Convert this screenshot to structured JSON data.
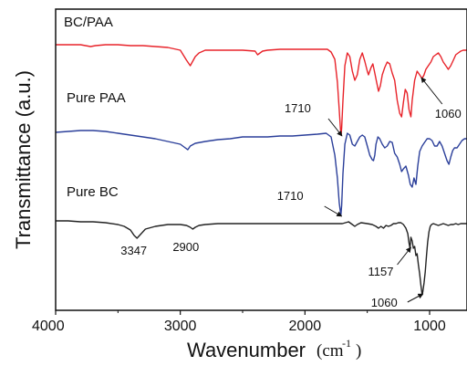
{
  "chart_data": {
    "type": "line",
    "title": "",
    "xlabel": "Wavenumber",
    "xunit": "(cm",
    "xunit_sup": "-1",
    "xunit_close": ")",
    "ylabel": "Transmittance (a.u.)",
    "xlim": [
      4000,
      700
    ],
    "x_reversed": true,
    "y_ticks_shown": false,
    "x_ticks": [
      4000,
      3000,
      2000,
      1000
    ],
    "x_tick_labels": [
      "4000",
      "3000",
      "2000",
      "1000"
    ],
    "grid": false,
    "legend": "none",
    "series": [
      {
        "name": "BC/PAA",
        "color": "#e8232a",
        "points": [
          [
            4000,
            39
          ],
          [
            3800,
            39
          ],
          [
            3720,
            41
          ],
          [
            3680,
            40
          ],
          [
            3600,
            39
          ],
          [
            3500,
            39
          ],
          [
            3400,
            40
          ],
          [
            3300,
            40
          ],
          [
            3100,
            42
          ],
          [
            3000,
            45
          ],
          [
            2950,
            56
          ],
          [
            2920,
            62
          ],
          [
            2880,
            52
          ],
          [
            2850,
            48
          ],
          [
            2800,
            45
          ],
          [
            2700,
            45
          ],
          [
            2600,
            45
          ],
          [
            2500,
            45
          ],
          [
            2400,
            46
          ],
          [
            2380,
            50
          ],
          [
            2340,
            46
          ],
          [
            2300,
            45
          ],
          [
            2200,
            44
          ],
          [
            2100,
            44
          ],
          [
            2000,
            44
          ],
          [
            1900,
            44
          ],
          [
            1820,
            44
          ],
          [
            1790,
            47
          ],
          [
            1760,
            55
          ],
          [
            1740,
            80
          ],
          [
            1725,
            110
          ],
          [
            1715,
            132
          ],
          [
            1710,
            138
          ],
          [
            1705,
            130
          ],
          [
            1695,
            100
          ],
          [
            1680,
            62
          ],
          [
            1660,
            48
          ],
          [
            1640,
            52
          ],
          [
            1620,
            68
          ],
          [
            1600,
            78
          ],
          [
            1580,
            72
          ],
          [
            1560,
            55
          ],
          [
            1540,
            48
          ],
          [
            1520,
            57
          ],
          [
            1500,
            68
          ],
          [
            1490,
            72
          ],
          [
            1470,
            64
          ],
          [
            1455,
            60
          ],
          [
            1440,
            70
          ],
          [
            1425,
            80
          ],
          [
            1410,
            90
          ],
          [
            1395,
            84
          ],
          [
            1380,
            72
          ],
          [
            1360,
            64
          ],
          [
            1340,
            58
          ],
          [
            1320,
            60
          ],
          [
            1300,
            70
          ],
          [
            1280,
            78
          ],
          [
            1260,
            100
          ],
          [
            1240,
            114
          ],
          [
            1225,
            118
          ],
          [
            1210,
            102
          ],
          [
            1195,
            88
          ],
          [
            1180,
            92
          ],
          [
            1165,
            110
          ],
          [
            1150,
            118
          ],
          [
            1140,
            100
          ],
          [
            1120,
            78
          ],
          [
            1100,
            68
          ],
          [
            1080,
            72
          ],
          [
            1060,
            76
          ],
          [
            1045,
            72
          ],
          [
            1030,
            66
          ],
          [
            1010,
            62
          ],
          [
            990,
            58
          ],
          [
            970,
            52
          ],
          [
            950,
            50
          ],
          [
            930,
            48
          ],
          [
            910,
            52
          ],
          [
            890,
            58
          ],
          [
            870,
            62
          ],
          [
            850,
            66
          ],
          [
            830,
            62
          ],
          [
            810,
            56
          ],
          [
            790,
            50
          ],
          [
            770,
            48
          ],
          [
            750,
            46
          ],
          [
            730,
            45
          ],
          [
            700,
            45
          ]
        ]
      },
      {
        "name": "Pure PAA",
        "color": "#2b3f9a",
        "points": [
          [
            4000,
            135
          ],
          [
            3900,
            134
          ],
          [
            3800,
            133
          ],
          [
            3700,
            133
          ],
          [
            3600,
            134
          ],
          [
            3500,
            136
          ],
          [
            3400,
            138
          ],
          [
            3300,
            140
          ],
          [
            3200,
            142
          ],
          [
            3100,
            145
          ],
          [
            3000,
            148
          ],
          [
            2960,
            152
          ],
          [
            2940,
            154
          ],
          [
            2920,
            150
          ],
          [
            2880,
            147
          ],
          [
            2800,
            145
          ],
          [
            2700,
            143
          ],
          [
            2600,
            142
          ],
          [
            2500,
            140
          ],
          [
            2400,
            140
          ],
          [
            2300,
            140
          ],
          [
            2200,
            139
          ],
          [
            2100,
            139
          ],
          [
            2000,
            138
          ],
          [
            1900,
            137
          ],
          [
            1830,
            136
          ],
          [
            1790,
            140
          ],
          [
            1760,
            160
          ],
          [
            1740,
            185
          ],
          [
            1725,
            212
          ],
          [
            1712,
            226
          ],
          [
            1705,
            215
          ],
          [
            1695,
            180
          ],
          [
            1680,
            148
          ],
          [
            1660,
            136
          ],
          [
            1640,
            138
          ],
          [
            1620,
            148
          ],
          [
            1600,
            150
          ],
          [
            1580,
            145
          ],
          [
            1560,
            140
          ],
          [
            1540,
            138
          ],
          [
            1520,
            140
          ],
          [
            1500,
            150
          ],
          [
            1480,
            160
          ],
          [
            1460,
            165
          ],
          [
            1450,
            166
          ],
          [
            1440,
            160
          ],
          [
            1430,
            148
          ],
          [
            1415,
            140
          ],
          [
            1400,
            142
          ],
          [
            1380,
            148
          ],
          [
            1360,
            152
          ],
          [
            1340,
            150
          ],
          [
            1320,
            145
          ],
          [
            1300,
            146
          ],
          [
            1280,
            158
          ],
          [
            1260,
            162
          ],
          [
            1240,
            170
          ],
          [
            1225,
            178
          ],
          [
            1210,
            175
          ],
          [
            1190,
            172
          ],
          [
            1170,
            182
          ],
          [
            1155,
            192
          ],
          [
            1140,
            195
          ],
          [
            1125,
            185
          ],
          [
            1110,
            192
          ],
          [
            1095,
            172
          ],
          [
            1080,
            156
          ],
          [
            1060,
            150
          ],
          [
            1040,
            146
          ],
          [
            1020,
            142
          ],
          [
            1000,
            142
          ],
          [
            980,
            144
          ],
          [
            960,
            150
          ],
          [
            940,
            150
          ],
          [
            920,
            145
          ],
          [
            900,
            150
          ],
          [
            880,
            158
          ],
          [
            860,
            166
          ],
          [
            845,
            170
          ],
          [
            830,
            162
          ],
          [
            815,
            155
          ],
          [
            800,
            152
          ],
          [
            780,
            152
          ],
          [
            760,
            148
          ],
          [
            740,
            144
          ],
          [
            720,
            142
          ],
          [
            700,
            142
          ]
        ]
      },
      {
        "name": "Pure BC",
        "color": "#222222",
        "points": [
          [
            4000,
            232
          ],
          [
            3900,
            232
          ],
          [
            3800,
            233
          ],
          [
            3700,
            233
          ],
          [
            3600,
            234
          ],
          [
            3500,
            236
          ],
          [
            3450,
            238
          ],
          [
            3400,
            242
          ],
          [
            3370,
            248
          ],
          [
            3347,
            251
          ],
          [
            3320,
            247
          ],
          [
            3280,
            241
          ],
          [
            3200,
            238
          ],
          [
            3100,
            236
          ],
          [
            3000,
            236
          ],
          [
            2950,
            237
          ],
          [
            2920,
            239
          ],
          [
            2900,
            241
          ],
          [
            2880,
            239
          ],
          [
            2850,
            237
          ],
          [
            2800,
            236
          ],
          [
            2700,
            235
          ],
          [
            2600,
            235
          ],
          [
            2500,
            235
          ],
          [
            2400,
            235
          ],
          [
            2300,
            235
          ],
          [
            2200,
            235
          ],
          [
            2100,
            235
          ],
          [
            2000,
            235
          ],
          [
            1900,
            235
          ],
          [
            1800,
            235
          ],
          [
            1700,
            235
          ],
          [
            1650,
            233
          ],
          [
            1620,
            236
          ],
          [
            1600,
            238
          ],
          [
            1580,
            236
          ],
          [
            1550,
            234
          ],
          [
            1500,
            235
          ],
          [
            1460,
            236
          ],
          [
            1430,
            238
          ],
          [
            1410,
            240
          ],
          [
            1390,
            238
          ],
          [
            1370,
            240
          ],
          [
            1350,
            237
          ],
          [
            1330,
            238
          ],
          [
            1310,
            237
          ],
          [
            1290,
            235
          ],
          [
            1270,
            235
          ],
          [
            1250,
            234
          ],
          [
            1230,
            234
          ],
          [
            1210,
            236
          ],
          [
            1190,
            240
          ],
          [
            1175,
            246
          ],
          [
            1165,
            256
          ],
          [
            1157,
            262
          ],
          [
            1150,
            250
          ],
          [
            1140,
            254
          ],
          [
            1130,
            262
          ],
          [
            1120,
            260
          ],
          [
            1110,
            270
          ],
          [
            1100,
            268
          ],
          [
            1090,
            280
          ],
          [
            1080,
            290
          ],
          [
            1070,
            302
          ],
          [
            1060,
            313
          ],
          [
            1055,
            310
          ],
          [
            1045,
            300
          ],
          [
            1035,
            288
          ],
          [
            1025,
            270
          ],
          [
            1015,
            255
          ],
          [
            1005,
            244
          ],
          [
            995,
            238
          ],
          [
            985,
            236
          ],
          [
            970,
            235
          ],
          [
            950,
            236
          ],
          [
            930,
            237
          ],
          [
            910,
            236
          ],
          [
            890,
            235
          ],
          [
            870,
            236
          ],
          [
            850,
            237
          ],
          [
            830,
            236
          ],
          [
            810,
            236
          ],
          [
            790,
            235
          ],
          [
            770,
            236
          ],
          [
            750,
            235
          ],
          [
            720,
            235
          ],
          [
            700,
            235
          ]
        ]
      }
    ],
    "series_labels": [
      "BC/PAA",
      "Pure PAA",
      "Pure BC"
    ],
    "annotations": [
      {
        "text": "1710",
        "series": "BC/PAA",
        "x": 1710
      },
      {
        "text": "1060",
        "series": "BC/PAA",
        "x": 1060
      },
      {
        "text": "1710",
        "series": "Pure PAA",
        "x": 1712
      },
      {
        "text": "3347",
        "series": "Pure BC",
        "x": 3347
      },
      {
        "text": "2900",
        "series": "Pure BC",
        "x": 2900
      },
      {
        "text": "1157",
        "series": "Pure BC",
        "x": 1157
      },
      {
        "text": "1060",
        "series": "Pure BC",
        "x": 1060
      }
    ]
  }
}
